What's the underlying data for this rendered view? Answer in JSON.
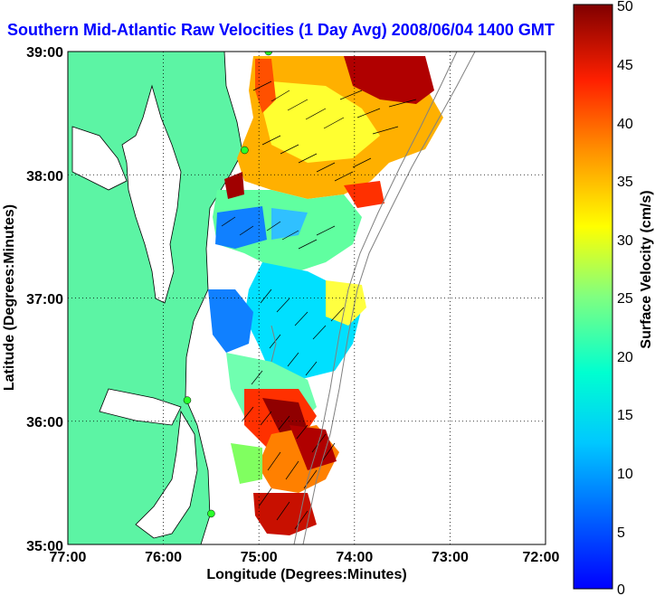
{
  "title": "Southern Mid-Atlantic Raw Velocities (1 Day Avg) 2008/06/04 1400 GMT",
  "map": {
    "lon_range": [
      -77,
      -72
    ],
    "lat_range": [
      35,
      39
    ],
    "x_ticks": [
      "77:00",
      "76:00",
      "75:00",
      "74:00",
      "73:00",
      "72:00"
    ],
    "y_ticks": [
      "35:00",
      "36:00",
      "37:00",
      "38:00",
      "39:00"
    ],
    "x_label": "Longitude (Degrees:Minutes)",
    "y_label": "Latitude (Degrees:Minutes)",
    "grid": "dotted",
    "colors": {
      "land": "#5cf4a4",
      "ocean": "#ffffff",
      "stations": "#2aff2a",
      "vectors": "#000000"
    },
    "stations": [
      {
        "lon": -74.9,
        "lat": 39.0
      },
      {
        "lon": -75.15,
        "lat": 38.2
      },
      {
        "lon": -75.75,
        "lat": 36.17
      },
      {
        "lon": -75.5,
        "lat": 35.25
      }
    ]
  },
  "colorbar": {
    "label": "Surface Velocity (cm/s)",
    "range": [
      0,
      50
    ],
    "ticks": [
      "0",
      "5",
      "10",
      "15",
      "20",
      "25",
      "30",
      "35",
      "40",
      "45",
      "50"
    ],
    "colormap": "jet"
  }
}
